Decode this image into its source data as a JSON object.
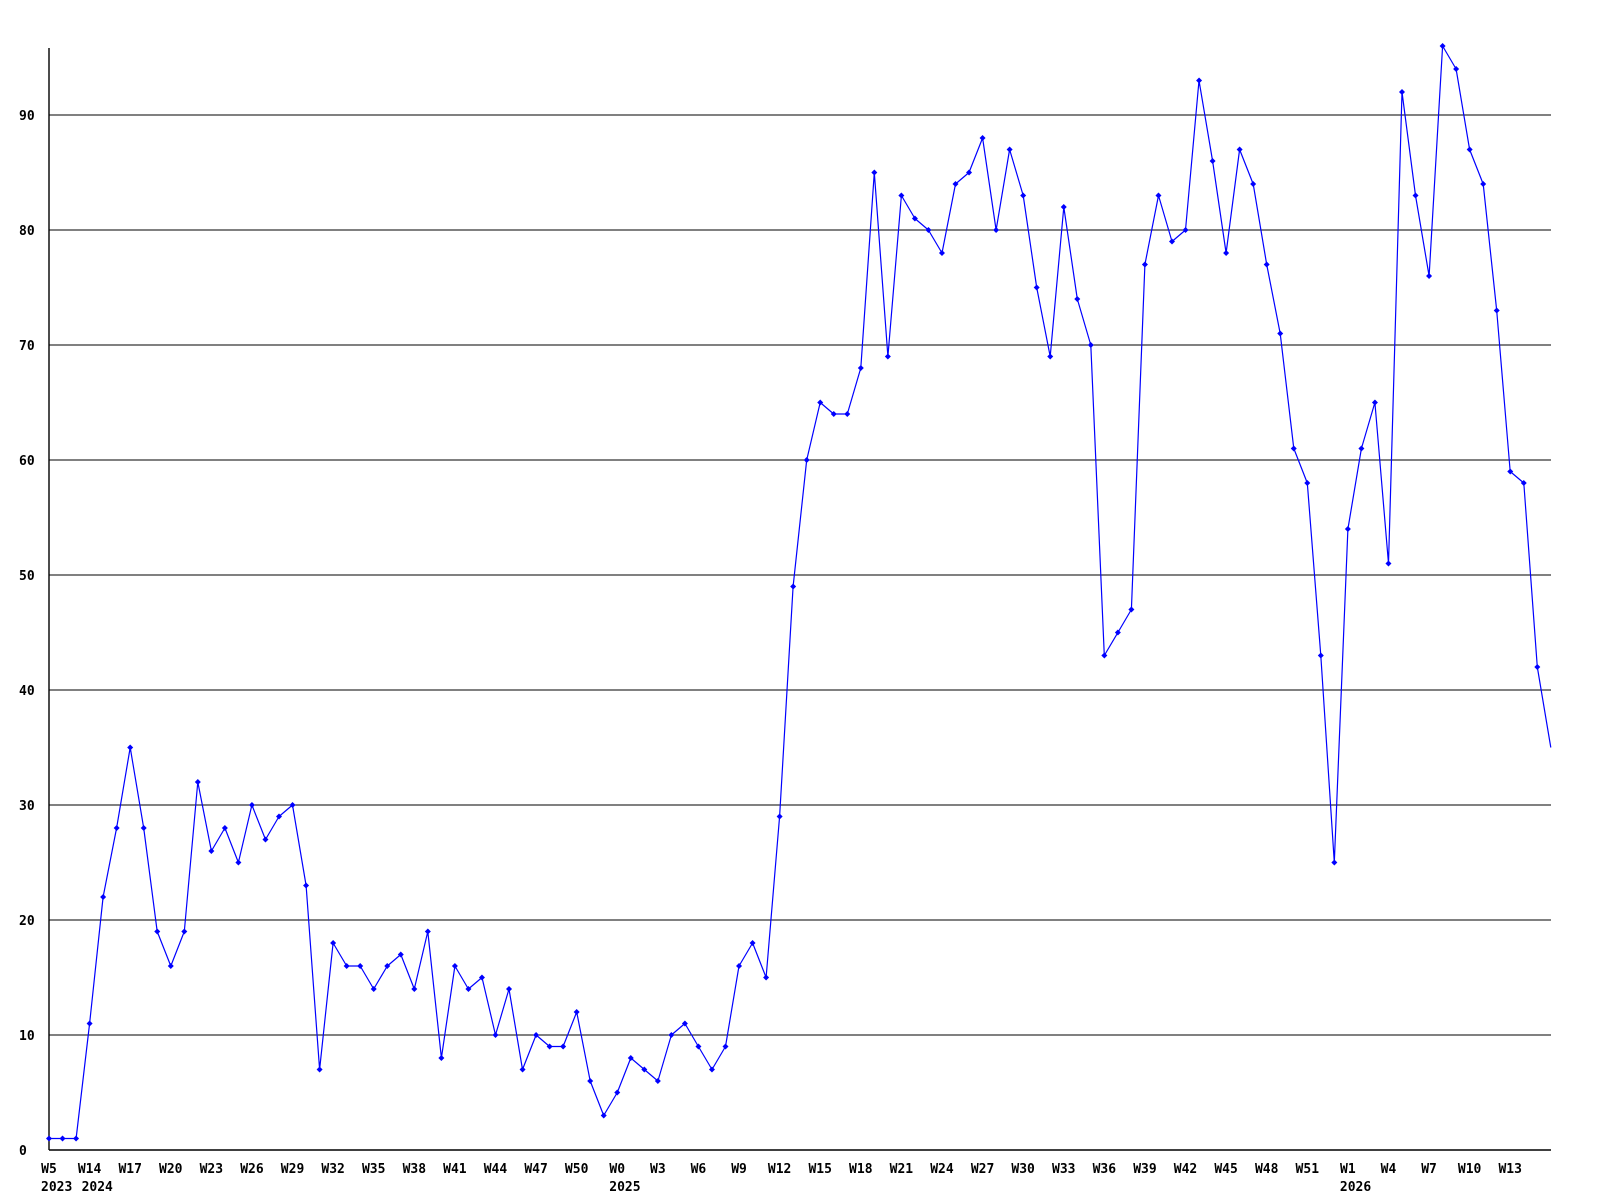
{
  "chart_data": {
    "type": "line",
    "title": "",
    "xlabel": "",
    "ylabel": "",
    "grid": true,
    "legend": "none",
    "background_color": "#ffffff",
    "axis_color": "#000000",
    "grid_color": "#000000",
    "line_color": "#0000ff",
    "marker_color": "#0000ff",
    "marker_shape": "diamond",
    "ylim": [
      0,
      96
    ],
    "y_ticks": [
      0,
      10,
      20,
      30,
      40,
      50,
      60,
      70,
      80,
      90
    ],
    "tick_every_n_points": 3,
    "x_ticks": [
      {
        "week": "W5",
        "year": "2023"
      },
      {
        "week": "W14",
        "year": "2024"
      },
      {
        "week": "W17",
        "year": ""
      },
      {
        "week": "W20",
        "year": ""
      },
      {
        "week": "W23",
        "year": ""
      },
      {
        "week": "W26",
        "year": ""
      },
      {
        "week": "W29",
        "year": ""
      },
      {
        "week": "W32",
        "year": ""
      },
      {
        "week": "W35",
        "year": ""
      },
      {
        "week": "W38",
        "year": ""
      },
      {
        "week": "W41",
        "year": ""
      },
      {
        "week": "W44",
        "year": ""
      },
      {
        "week": "W47",
        "year": ""
      },
      {
        "week": "W50",
        "year": ""
      },
      {
        "week": "W0",
        "year": "2025"
      },
      {
        "week": "W3",
        "year": ""
      },
      {
        "week": "W6",
        "year": ""
      },
      {
        "week": "W9",
        "year": ""
      },
      {
        "week": "W12",
        "year": ""
      },
      {
        "week": "W15",
        "year": ""
      },
      {
        "week": "W18",
        "year": ""
      },
      {
        "week": "W21",
        "year": ""
      },
      {
        "week": "W24",
        "year": ""
      },
      {
        "week": "W27",
        "year": ""
      },
      {
        "week": "W30",
        "year": ""
      },
      {
        "week": "W33",
        "year": ""
      },
      {
        "week": "W36",
        "year": ""
      },
      {
        "week": "W39",
        "year": ""
      },
      {
        "week": "W42",
        "year": ""
      },
      {
        "week": "W45",
        "year": ""
      },
      {
        "week": "W48",
        "year": ""
      },
      {
        "week": "W51",
        "year": ""
      },
      {
        "week": "W1",
        "year": "2026"
      },
      {
        "week": "W4",
        "year": ""
      },
      {
        "week": "W7",
        "year": ""
      },
      {
        "week": "W10",
        "year": ""
      },
      {
        "week": "W13",
        "year": ""
      }
    ],
    "values": [
      1,
      1,
      1,
      11,
      22,
      28,
      35,
      28,
      19,
      16,
      19,
      32,
      26,
      28,
      25,
      30,
      27,
      29,
      30,
      23,
      7,
      18,
      16,
      16,
      14,
      16,
      17,
      14,
      19,
      8,
      16,
      14,
      15,
      10,
      14,
      7,
      10,
      9,
      9,
      12,
      6,
      3,
      5,
      8,
      7,
      6,
      10,
      11,
      9,
      7,
      9,
      16,
      18,
      15,
      29,
      49,
      60,
      65,
      64,
      64,
      68,
      85,
      69,
      83,
      81,
      80,
      78,
      84,
      85,
      88,
      80,
      87,
      83,
      75,
      69,
      82,
      74,
      70,
      43,
      45,
      47,
      77,
      83,
      79,
      80,
      93,
      86,
      78,
      87,
      84,
      77,
      71,
      61,
      58,
      43,
      25,
      54,
      61,
      65,
      51,
      92,
      83,
      76,
      96,
      94,
      87,
      84,
      73,
      59,
      58,
      42,
      35
    ]
  }
}
